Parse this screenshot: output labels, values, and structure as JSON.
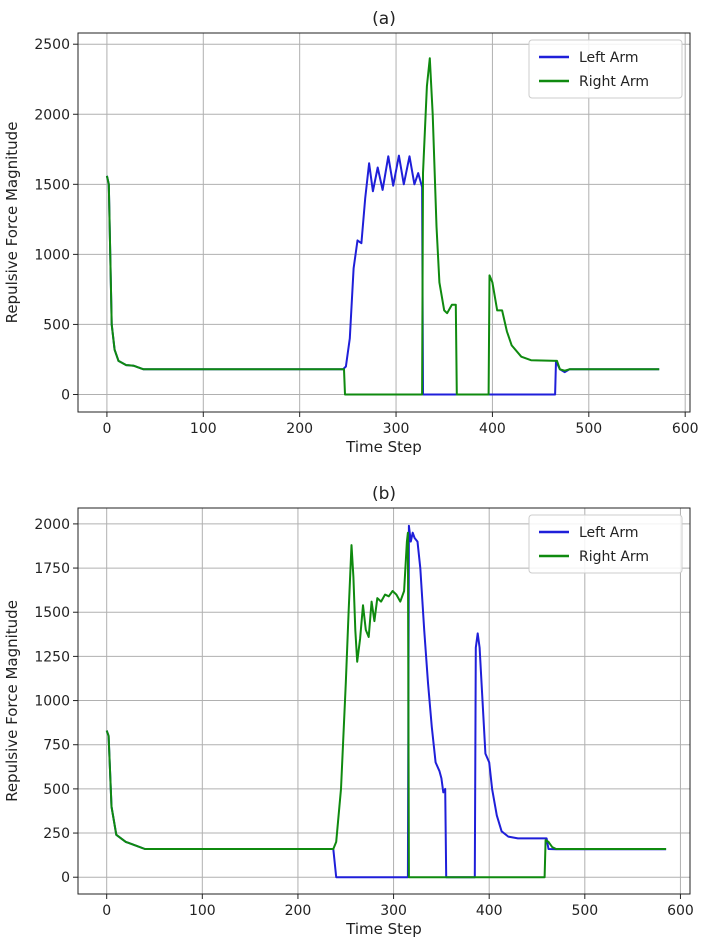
{
  "chart_data": [
    {
      "type": "line",
      "title": "(a)",
      "xlabel": "Time Step",
      "ylabel": "Repulsive Force Magnitude",
      "xlim": [
        -30,
        605
      ],
      "ylim": [
        -125,
        2580
      ],
      "xticks": [
        0,
        100,
        200,
        300,
        400,
        500,
        600
      ],
      "yticks": [
        0,
        500,
        1000,
        1500,
        2000,
        2500
      ],
      "grid": true,
      "legend_position": "top-right",
      "series": [
        {
          "name": "Left Arm",
          "color": "#1f1fd9",
          "points": [
            [
              0,
              1560
            ],
            [
              2,
              1500
            ],
            [
              5,
              500
            ],
            [
              8,
              320
            ],
            [
              12,
              240
            ],
            [
              20,
              210
            ],
            [
              28,
              205
            ],
            [
              38,
              180
            ],
            [
              100,
              180
            ],
            [
              200,
              180
            ],
            [
              245,
              180
            ],
            [
              248,
              200
            ],
            [
              252,
              400
            ],
            [
              256,
              900
            ],
            [
              260,
              1100
            ],
            [
              264,
              1080
            ],
            [
              268,
              1400
            ],
            [
              272,
              1650
            ],
            [
              276,
              1450
            ],
            [
              281,
              1620
            ],
            [
              286,
              1460
            ],
            [
              292,
              1700
            ],
            [
              297,
              1490
            ],
            [
              303,
              1705
            ],
            [
              308,
              1500
            ],
            [
              314,
              1700
            ],
            [
              319,
              1500
            ],
            [
              323,
              1580
            ],
            [
              327,
              1480
            ],
            [
              328,
              0
            ],
            [
              465,
              0
            ],
            [
              466,
              240
            ],
            [
              470,
              180
            ],
            [
              475,
              160
            ],
            [
              480,
              180
            ],
            [
              573,
              180
            ]
          ]
        },
        {
          "name": "Right Arm",
          "color": "#0f8a0f",
          "points": [
            [
              0,
              1560
            ],
            [
              2,
              1500
            ],
            [
              5,
              500
            ],
            [
              8,
              320
            ],
            [
              12,
              240
            ],
            [
              20,
              210
            ],
            [
              28,
              205
            ],
            [
              38,
              180
            ],
            [
              100,
              180
            ],
            [
              200,
              180
            ],
            [
              246,
              180
            ],
            [
              247,
              0
            ],
            [
              327,
              0
            ],
            [
              328,
              1580
            ],
            [
              332,
              2200
            ],
            [
              335,
              2400
            ],
            [
              338,
              2000
            ],
            [
              342,
              1200
            ],
            [
              345,
              800
            ],
            [
              350,
              600
            ],
            [
              353,
              580
            ],
            [
              358,
              640
            ],
            [
              362,
              640
            ],
            [
              363,
              0
            ],
            [
              396,
              0
            ],
            [
              397,
              850
            ],
            [
              400,
              800
            ],
            [
              405,
              600
            ],
            [
              410,
              600
            ],
            [
              415,
              450
            ],
            [
              420,
              350
            ],
            [
              430,
              270
            ],
            [
              440,
              245
            ],
            [
              467,
              240
            ],
            [
              470,
              180
            ],
            [
              475,
              170
            ],
            [
              480,
              180
            ],
            [
              573,
              180
            ]
          ]
        }
      ]
    },
    {
      "type": "line",
      "title": "(b)",
      "xlabel": "Time Step",
      "ylabel": "Repulsive Force Magnitude",
      "xlim": [
        -30,
        610
      ],
      "ylim": [
        -95,
        2090
      ],
      "xticks": [
        0,
        100,
        200,
        300,
        400,
        500,
        600
      ],
      "yticks": [
        0,
        250,
        500,
        750,
        1000,
        1250,
        1500,
        1750,
        2000
      ],
      "grid": true,
      "legend_position": "top-right",
      "series": [
        {
          "name": "Left Arm",
          "color": "#1f1fd9",
          "points": [
            [
              0,
              830
            ],
            [
              2,
              800
            ],
            [
              5,
              400
            ],
            [
              10,
              240
            ],
            [
              20,
              200
            ],
            [
              30,
              180
            ],
            [
              40,
              160
            ],
            [
              100,
              160
            ],
            [
              200,
              160
            ],
            [
              237,
              160
            ],
            [
              240,
              0
            ],
            [
              315,
              0
            ],
            [
              316,
              1990
            ],
            [
              318,
              1900
            ],
            [
              320,
              1950
            ],
            [
              322,
              1920
            ],
            [
              325,
              1900
            ],
            [
              328,
              1750
            ],
            [
              332,
              1400
            ],
            [
              336,
              1100
            ],
            [
              340,
              850
            ],
            [
              344,
              650
            ],
            [
              348,
              600
            ],
            [
              350,
              560
            ],
            [
              352,
              480
            ],
            [
              354,
              500
            ],
            [
              355,
              0
            ],
            [
              385,
              0
            ],
            [
              386,
              1300
            ],
            [
              388,
              1380
            ],
            [
              390,
              1300
            ],
            [
              393,
              1000
            ],
            [
              396,
              700
            ],
            [
              400,
              650
            ],
            [
              403,
              500
            ],
            [
              408,
              350
            ],
            [
              413,
              260
            ],
            [
              420,
              230
            ],
            [
              430,
              220
            ],
            [
              460,
              220
            ],
            [
              462,
              160
            ],
            [
              470,
              158
            ],
            [
              585,
              158
            ]
          ]
        },
        {
          "name": "Right Arm",
          "color": "#0f8a0f",
          "points": [
            [
              0,
              830
            ],
            [
              2,
              800
            ],
            [
              5,
              400
            ],
            [
              10,
              240
            ],
            [
              20,
              200
            ],
            [
              30,
              180
            ],
            [
              40,
              160
            ],
            [
              100,
              160
            ],
            [
              200,
              160
            ],
            [
              237,
              160
            ],
            [
              240,
              200
            ],
            [
              245,
              500
            ],
            [
              250,
              1100
            ],
            [
              253,
              1500
            ],
            [
              256,
              1880
            ],
            [
              258,
              1700
            ],
            [
              260,
              1400
            ],
            [
              262,
              1220
            ],
            [
              265,
              1350
            ],
            [
              268,
              1540
            ],
            [
              271,
              1400
            ],
            [
              274,
              1360
            ],
            [
              277,
              1560
            ],
            [
              280,
              1450
            ],
            [
              283,
              1580
            ],
            [
              287,
              1560
            ],
            [
              291,
              1600
            ],
            [
              295,
              1590
            ],
            [
              299,
              1620
            ],
            [
              303,
              1600
            ],
            [
              307,
              1560
            ],
            [
              311,
              1620
            ],
            [
              314,
              1900
            ],
            [
              315,
              1950
            ],
            [
              316,
              0
            ],
            [
              458,
              0
            ],
            [
              459,
              210
            ],
            [
              462,
              200
            ],
            [
              466,
              170
            ],
            [
              470,
              160
            ],
            [
              585,
              160
            ]
          ]
        }
      ]
    }
  ]
}
